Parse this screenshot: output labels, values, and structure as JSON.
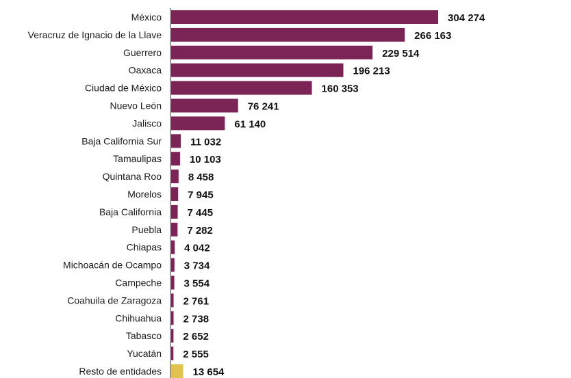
{
  "chart_data": {
    "type": "bar",
    "orientation": "horizontal",
    "categories": [
      "México",
      "Veracruz de Ignacio de la Llave",
      "Guerrero",
      "Oaxaca",
      "Ciudad de México",
      "Nuevo León",
      "Jalisco",
      "Baja California Sur",
      "Tamaulipas",
      "Quintana Roo",
      "Morelos",
      "Baja California",
      "Puebla",
      "Chiapas",
      "Michoacán de Ocampo",
      "Campeche",
      "Coahuila de Zaragoza",
      "Chihuahua",
      "Tabasco",
      "Yucatán",
      "Resto de entidades"
    ],
    "values": [
      304274,
      266163,
      229514,
      196213,
      160353,
      76241,
      61140,
      11032,
      10103,
      8458,
      7945,
      7445,
      7282,
      4042,
      3734,
      3554,
      2761,
      2738,
      2652,
      2555,
      13654
    ],
    "value_labels": [
      "304 274",
      "266 163",
      "229 514",
      "196 213",
      "160 353",
      "76 241",
      "61 140",
      "11 032",
      "10 103",
      "8 458",
      "7 945",
      "7 445",
      "7 282",
      "4 042",
      "3 734",
      "3 554",
      "2 761",
      "2 738",
      "2 652",
      "2 555",
      "13 654"
    ],
    "title": "",
    "xlabel": "",
    "ylabel": "",
    "xlim": [
      0,
      304274
    ],
    "grid": false,
    "legend": "none",
    "colors": {
      "bar": "#7a2556",
      "highlight_bar": "#e0c24f",
      "highlight_categories": [
        "Resto de entidades"
      ],
      "axis": "#333333"
    }
  }
}
